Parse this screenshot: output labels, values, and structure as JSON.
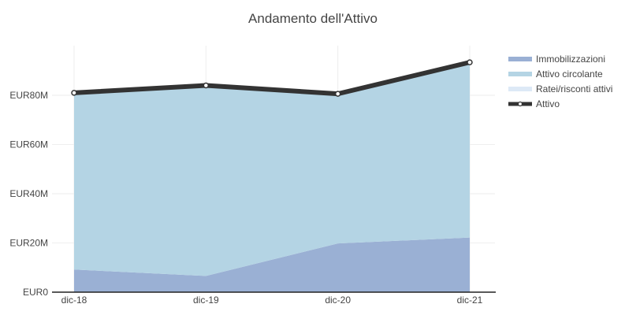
{
  "chart_data": {
    "type": "area",
    "title": "Andamento dell'Attivo",
    "categories": [
      "dic-18",
      "dic-19",
      "dic-20",
      "dic-21"
    ],
    "ylim": [
      0,
      100
    ],
    "y_ticks": [
      0,
      20,
      40,
      60,
      80
    ],
    "y_tick_labels": [
      "EUR0",
      "EUR20M",
      "EUR40M",
      "EUR60M",
      "EUR80M"
    ],
    "grid": true,
    "legend_position": "top-right",
    "series": [
      {
        "name": "Immobilizzazioni",
        "type": "stacked-area",
        "color": "#9ab0d4",
        "values": [
          9.2,
          6.6,
          19.8,
          22.2
        ]
      },
      {
        "name": "Attivo circolante",
        "type": "stacked-area",
        "color": "#b4d4e4",
        "values": [
          71.6,
          77.2,
          60.6,
          71.0
        ]
      },
      {
        "name": "Ratei/risconti attivi",
        "type": "stacked-area",
        "color": "#dde9f6",
        "values": [
          0.2,
          0.2,
          0.2,
          0.2
        ]
      },
      {
        "name": "Attivo",
        "type": "line",
        "color": "#333333",
        "values": [
          81.0,
          84.0,
          80.6,
          93.4
        ]
      }
    ]
  }
}
